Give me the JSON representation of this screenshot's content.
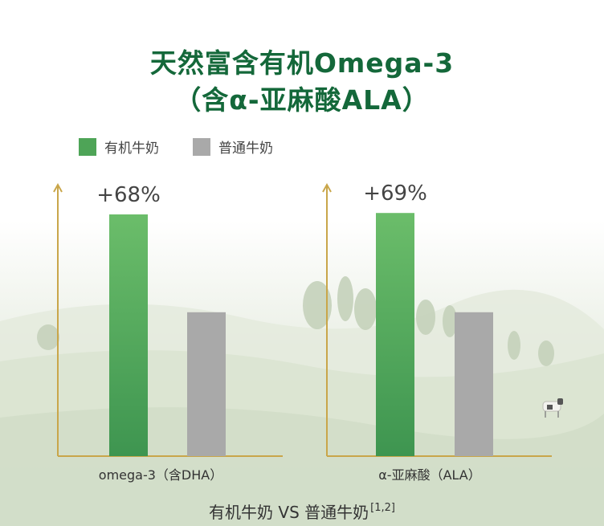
{
  "title_line1": "天然富含有机Omega-3",
  "title_line2": "（含α-亚麻酸ALA）",
  "legend": [
    {
      "label": "有机牛奶",
      "color": "#4ea457"
    },
    {
      "label": "普通牛奶",
      "color": "#a9a9a9"
    }
  ],
  "footer": {
    "text": "有机牛奶 VS 普通牛奶",
    "ref": "[1,2]"
  },
  "colors": {
    "title": "#14683a",
    "axis": "#c9a64a"
  },
  "chart_data": [
    {
      "type": "bar",
      "categories": [
        "omega-3（含DHA）"
      ],
      "series": [
        {
          "name": "有机牛奶",
          "values": [
            168
          ]
        },
        {
          "name": "普通牛奶",
          "values": [
            100
          ]
        }
      ],
      "annotation": "+68%",
      "xlabel": "omega-3（含DHA）"
    },
    {
      "type": "bar",
      "categories": [
        "α-亚麻酸（ALA）"
      ],
      "series": [
        {
          "name": "有机牛奶",
          "values": [
            169
          ]
        },
        {
          "name": "普通牛奶",
          "values": [
            100
          ]
        }
      ],
      "annotation": "+69%",
      "xlabel": "α-亚麻酸（ALA）"
    }
  ]
}
